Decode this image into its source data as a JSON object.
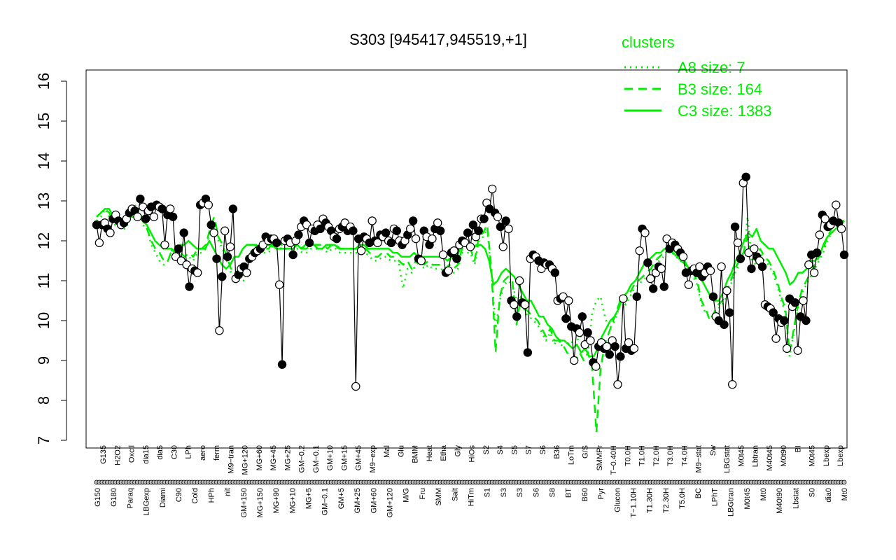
{
  "chart_data": {
    "type": "line",
    "title": "S303 [945417,945519,+1]",
    "xlabel": "",
    "ylabel": "",
    "ylim": [
      7,
      16
    ],
    "y_ticks": [
      "7",
      "8",
      "9",
      "10",
      "11",
      "12",
      "13",
      "14",
      "15",
      "16"
    ],
    "x_tick_labels_upper": [
      "G135",
      "H2O2",
      "Oxctl",
      "dia15",
      "dia5",
      "C30",
      "LPh",
      "aero",
      "ferm",
      "M9−tran",
      "MG+120",
      "MG+60",
      "MG+45",
      "MG+25",
      "GM−0.2",
      "GM−0.1",
      "GM+10",
      "GM+15",
      "GM+45",
      "M9−exp",
      "Mal",
      "Glu",
      "BMM",
      "Heat",
      "Etha",
      "Gly",
      "HiOs",
      "S2",
      "S4",
      "S5",
      "S7",
      "S6",
      "B36",
      "LoTm",
      "G/S",
      "SMMPr",
      "T−0.40H",
      "T0.0H",
      "T1.0H",
      "T2.0H",
      "T3.0H",
      "T4.0H",
      "M9−stat",
      "Sw",
      "LBGstat",
      "M0t45",
      "Lbtran",
      "M40t45",
      "M0t90",
      "BI",
      "M0t45",
      "Lbexp",
      "Lbexp"
    ],
    "x_tick_labels_lower": [
      "G150",
      "G180",
      "Paraq",
      "LBGexp",
      "Diami",
      "C90",
      "Cold",
      "HPh",
      "nit",
      "GM+150",
      "MG+150",
      "MG+90",
      "MG+10",
      "MG+5",
      "GM−0.1",
      "GM+5",
      "GM+25",
      "GM+60",
      "GM+120",
      "M/G",
      "Fru",
      "SMM",
      "Salt",
      "HiTm",
      "S1",
      "S3",
      "S3",
      "S6",
      "S8",
      "BT",
      "B60",
      "Pyr",
      "Glucon",
      "T−1.10H",
      "T1.30H",
      "T2.30H",
      "T5.0H",
      "BC",
      "LPhT",
      "LBGtran",
      "M0t45",
      "Mt0",
      "M40t90",
      "Lbstat",
      "S0",
      "dia0",
      "Mt0"
    ],
    "legend": {
      "title": "clusters",
      "placement": "top-right",
      "entries": [
        {
          "label": "A8 size: 7",
          "style": "dotted"
        },
        {
          "label": "B3 size: 164",
          "style": "dashed"
        },
        {
          "label": "C3 size: 1383",
          "style": "solid"
        }
      ]
    },
    "series": [
      {
        "role": "C3",
        "style": "solid",
        "color": "#00ee00",
        "values": [
          12.6,
          12.7,
          12.8,
          12.8,
          12.6,
          12.6,
          12.5,
          12.5,
          12.6,
          12.6,
          12.7,
          12.5,
          12.4,
          12.2,
          12.0,
          11.9,
          11.8,
          11.8,
          11.8,
          11.7,
          11.9,
          11.9,
          12.0,
          11.9,
          11.8,
          11.8,
          11.8,
          12.0,
          11.8,
          11.6,
          11.4,
          11.3,
          11.4,
          11.6,
          11.6,
          11.8,
          11.9,
          11.9,
          11.9,
          11.8,
          11.9,
          11.9,
          11.9,
          11.8,
          11.8,
          11.8,
          11.8,
          11.8,
          11.9,
          11.8,
          11.9,
          11.9,
          11.9,
          11.8,
          11.8,
          11.9,
          11.9,
          11.9,
          11.8,
          11.8,
          11.8,
          11.8,
          11.8,
          11.9,
          11.9,
          11.8,
          11.8,
          11.8,
          11.8,
          11.8,
          11.8,
          11.7,
          11.7,
          11.6,
          11.6,
          11.6,
          11.7,
          11.6,
          11.6,
          11.6,
          11.6,
          11.6,
          11.6,
          11.6,
          11.5,
          11.6,
          11.5,
          11.8,
          11.9,
          11.9,
          11.8,
          11.9,
          11.9,
          11.8,
          11.5,
          10.9,
          11.0,
          11.2,
          11.3,
          11.2,
          11.1,
          10.9,
          10.7,
          10.5,
          10.5,
          10.3,
          10.1,
          10.1,
          9.9,
          9.8,
          9.6,
          9.5,
          9.5,
          9.4,
          9.3,
          9.4,
          9.2,
          9.3,
          9.1,
          9.1,
          9.3,
          9.6,
          9.8,
          10.0,
          10.1,
          10.3,
          10.6,
          10.7,
          10.9,
          11.0,
          11.2,
          11.4,
          11.5,
          11.6,
          11.7,
          11.7,
          11.8,
          11.8,
          11.7,
          11.6,
          11.5,
          11.4,
          11.3,
          11.2,
          11.1,
          11.0,
          10.8,
          10.6,
          10.5,
          10.5,
          10.7,
          11.0,
          11.2,
          11.5,
          11.7,
          12.0,
          12.2,
          12.1,
          12.3,
          12.0,
          11.9,
          11.8,
          11.8,
          11.6,
          11.4,
          11.2,
          10.9,
          11.0,
          11.2,
          11.2,
          11.3,
          11.5,
          11.5,
          11.6,
          11.9,
          12.1,
          12.2,
          12.3,
          12.4,
          12.5
        ]
      },
      {
        "role": "B3",
        "style": "dashed",
        "color": "#00ee00",
        "values": [
          12.6,
          12.7,
          12.8,
          12.7,
          12.5,
          12.5,
          12.4,
          12.4,
          12.7,
          12.8,
          12.8,
          12.5,
          12.3,
          12.0,
          11.8,
          11.7,
          11.5,
          11.5,
          11.8,
          11.6,
          11.7,
          11.6,
          11.7,
          11.6,
          11.8,
          11.8,
          11.9,
          12.3,
          12.6,
          12.1,
          11.9,
          11.6,
          11.3,
          11.3,
          11.2,
          11.1,
          11.5,
          11.8,
          11.9,
          11.8,
          11.8,
          11.8,
          12.0,
          12.0,
          11.9,
          11.9,
          11.9,
          11.9,
          11.9,
          11.8,
          11.8,
          11.9,
          11.9,
          11.9,
          11.9,
          11.8,
          11.9,
          11.9,
          11.8,
          11.8,
          11.8,
          11.8,
          11.8,
          11.8,
          11.8,
          11.7,
          11.6,
          11.6,
          11.7,
          11.7,
          11.6,
          11.6,
          11.5,
          11.4,
          11.5,
          11.3,
          11.5,
          11.6,
          11.4,
          11.5,
          11.4,
          11.4,
          11.4,
          11.3,
          11.4,
          11.3,
          11.4,
          11.8,
          11.8,
          11.8,
          11.5,
          12.1,
          12.2,
          12.4,
          11.3,
          9.2,
          10.6,
          11.0,
          11.1,
          11.0,
          9.9,
          10.6,
          10.3,
          10.2,
          10.1,
          10.0,
          9.8,
          9.6,
          9.8,
          9.5,
          9.5,
          9.4,
          9.2,
          9.1,
          9.0,
          9.2,
          9.0,
          9.2,
          8.8,
          7.2,
          8.8,
          9.4,
          9.7,
          10.0,
          10.3,
          10.6,
          10.5,
          10.7,
          10.9,
          11.0,
          11.1,
          11.2,
          11.3,
          11.5,
          11.6,
          11.7,
          11.9,
          11.8,
          11.7,
          11.6,
          11.5,
          11.3,
          11.2,
          11.0,
          10.5,
          10.3,
          10.0,
          10.2,
          10.4,
          10.5,
          10.7,
          11.0,
          11.3,
          11.5,
          11.7,
          12.1,
          11.6,
          11.5,
          11.8,
          11.6,
          11.5,
          11.3,
          11.0,
          10.6,
          10.3,
          9.2,
          9.8,
          10.4,
          10.8,
          11.0,
          11.2,
          11.4,
          11.6,
          11.8,
          12.1,
          12.3,
          12.4,
          12.5,
          12.5
        ]
      },
      {
        "role": "A8",
        "style": "dotted",
        "color": "#00ee00",
        "values": [
          12.5,
          12.6,
          12.8,
          12.6,
          12.4,
          12.4,
          12.3,
          12.3,
          12.6,
          12.9,
          12.8,
          12.4,
          12.3,
          11.9,
          11.7,
          11.5,
          11.4,
          11.5,
          11.8,
          11.6,
          11.6,
          11.5,
          11.6,
          11.5,
          11.7,
          11.7,
          11.8,
          12.2,
          12.5,
          12.0,
          11.8,
          11.5,
          11.2,
          11.2,
          11.1,
          11.0,
          11.4,
          11.7,
          11.8,
          11.7,
          11.7,
          11.7,
          11.9,
          11.9,
          11.8,
          11.8,
          11.8,
          11.8,
          11.8,
          11.7,
          11.7,
          11.8,
          11.8,
          11.8,
          11.8,
          11.7,
          11.8,
          11.8,
          11.7,
          11.7,
          11.7,
          11.7,
          11.7,
          11.7,
          11.7,
          11.6,
          11.5,
          11.5,
          11.6,
          11.6,
          11.5,
          11.5,
          11.4,
          10.8,
          11.3,
          11.2,
          11.4,
          11.5,
          11.3,
          11.4,
          11.3,
          11.3,
          11.3,
          11.2,
          11.3,
          11.2,
          11.3,
          11.7,
          11.7,
          11.7,
          11.4,
          12.0,
          12.1,
          12.3,
          11.2,
          9.8,
          10.5,
          10.9,
          11.0,
          10.9,
          10.5,
          10.6,
          10.2,
          10.1,
          10.0,
          9.9,
          9.7,
          9.5,
          9.7,
          9.4,
          9.6,
          9.3,
          9.4,
          9.5,
          9.3,
          9.7,
          9.4,
          9.2,
          10.2,
          10.5,
          10.6,
          10.1,
          9.8,
          9.9,
          10.2,
          10.5,
          10.4,
          10.6,
          10.8,
          10.9,
          11.0,
          11.1,
          11.2,
          11.4,
          11.5,
          11.6,
          11.8,
          11.7,
          11.6,
          11.5,
          11.4,
          11.2,
          11.1,
          10.9,
          10.4,
          10.2,
          10.1,
          10.1,
          10.3,
          10.4,
          10.6,
          10.9,
          11.2,
          11.4,
          11.6,
          12.6,
          11.5,
          11.4,
          11.7,
          11.5,
          11.4,
          11.2,
          10.9,
          10.5,
          10.2,
          9.1,
          9.7,
          10.3,
          10.7,
          10.9,
          11.1,
          11.3,
          11.5,
          11.7,
          12.0,
          12.2,
          12.3,
          12.4,
          12.4
        ]
      },
      {
        "role": "S303",
        "style": "points",
        "color": "#000000",
        "values": [
          12.4,
          11.95,
          12.4,
          12.45,
          12.3,
          12.2,
          12.55,
          12.65,
          12.5,
          12.4,
          12.45,
          12.55,
          12.7,
          12.8,
          12.75,
          12.6,
          13.05,
          12.85,
          12.55,
          12.75,
          12.85,
          12.6,
          12.9,
          12.85,
          12.8,
          11.9,
          12.65,
          12.8,
          12.6,
          11.6,
          11.8,
          11.5,
          12.2,
          11.4,
          10.85,
          11.3,
          11.25,
          11.2,
          12.9,
          12.95,
          13.05,
          12.9,
          12.4,
          12.2,
          11.55,
          9.75,
          11.1,
          12.25,
          11.6,
          11.85,
          12.8,
          11.05,
          11.15,
          11.3,
          11.35,
          11.2,
          11.55,
          11.6,
          11.7,
          11.75,
          11.8,
          11.9,
          12.1,
          12.0,
          12.05,
          12.05,
          11.95,
          10.9,
          8.9,
          12.0,
          12.05,
          11.95,
          11.65,
          12.0,
          12.15,
          12.35,
          12.5,
          12.4,
          11.95,
          12.3,
          12.25,
          12.4,
          12.3,
          12.55,
          12.45,
          12.35,
          12.25,
          12.1,
          12.05,
          12.3,
          12.35,
          12.45,
          12.25,
          12.35,
          12.25,
          8.35,
          12.05,
          11.75,
          12.1,
          12.05,
          11.95,
          12.5,
          12.0,
          11.95,
          12.15,
          12.1,
          12.2,
          12.0,
          11.95,
          12.3,
          12.25,
          12.0,
          11.9,
          12.0,
          12.15,
          12.3,
          12.5,
          12.05,
          11.55,
          11.5,
          12.25,
          12.1,
          11.9,
          12.05,
          12.3,
          12.45,
          12.25,
          11.65,
          11.2,
          11.25,
          11.7,
          11.75,
          11.55,
          11.9,
          12.0,
          11.95,
          12.2,
          11.85,
          12.4,
          12.1,
          12.25,
          12.55,
          12.55,
          12.95,
          12.8,
          13.3,
          12.7,
          12.6,
          12.35,
          11.85,
          12.5,
          12.3,
          10.5,
          10.4,
          10.1,
          11.0,
          10.45,
          10.4,
          9.2,
          11.55,
          11.65,
          11.6,
          11.5,
          11.3,
          11.45,
          11.4,
          11.4,
          11.3,
          11.2,
          10.5,
          10.55,
          10.6,
          10.05,
          10.5,
          9.85,
          9.0,
          9.8,
          9.7,
          10.1,
          9.4,
          9.7,
          9.5,
          8.95,
          8.85,
          9.35,
          9.45,
          9.3,
          9.35,
          9.15,
          9.5,
          9.35,
          8.4,
          9.1,
          10.55,
          9.3,
          9.45,
          9.25,
          9.3,
          10.6,
          11.75,
          12.3,
          12.2,
          11.45,
          11.05,
          10.8,
          11.2,
          11.35,
          11.3,
          10.85,
          12.05,
          11.8,
          11.95,
          11.9,
          11.8,
          11.7,
          11.6,
          11.2,
          10.9,
          11.25,
          11.3,
          11.2,
          11.35,
          11.1,
          11.2,
          11.35,
          11.25,
          10.6,
          10.1,
          10.0,
          11.35,
          9.9,
          10.75,
          10.2,
          8.4,
          12.35,
          11.95,
          11.55,
          13.45,
          13.6,
          11.7,
          11.3,
          11.8,
          11.6,
          11.5,
          11.35,
          10.4,
          10.35,
          10.3,
          10.2,
          9.55,
          10.05,
          9.95,
          10.0,
          9.3,
          10.55,
          10.35,
          10.45,
          9.25,
          10.1,
          10.5,
          10.0,
          11.4,
          11.65,
          11.2,
          11.7,
          12.15,
          12.65,
          12.55,
          12.35,
          12.4,
          12.5,
          12.9,
          12.45,
          12.3,
          11.65
        ]
      }
    ]
  }
}
